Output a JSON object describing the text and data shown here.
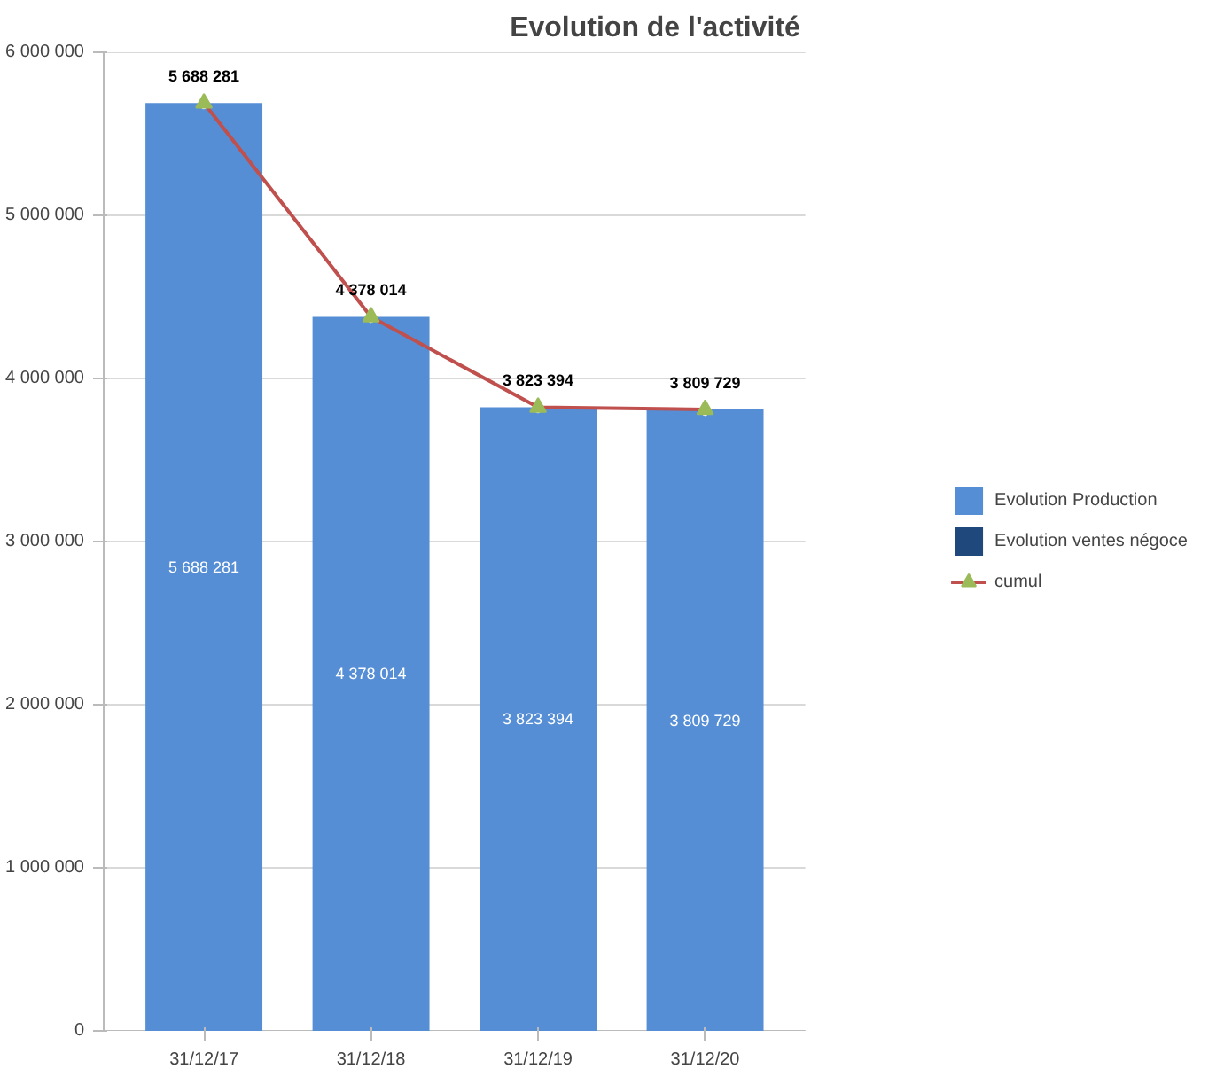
{
  "chart_data": {
    "type": "bar",
    "title": "Evolution de l'activité",
    "categories": [
      "31/12/17",
      "31/12/18",
      "31/12/19",
      "31/12/20"
    ],
    "stacked": true,
    "data_labels": true,
    "grid": "y",
    "legend": "right",
    "ylim": [
      0,
      6000000
    ],
    "yticks": [
      0,
      {
        "value": 1000000,
        "label": "1 000 000"
      },
      {
        "value": 2000000,
        "label": "2 000 000"
      },
      {
        "value": 3000000,
        "label": "3 000 000"
      },
      {
        "value": 4000000,
        "label": "4 000 000"
      },
      {
        "value": 5000000,
        "label": "5 000 000"
      },
      {
        "value": 6000000,
        "label": "6 000 000"
      }
    ],
    "series": [
      {
        "name": "Evolution Production",
        "color": "#558ed5",
        "values": [
          5688281,
          4378014,
          3823394,
          3809729
        ]
      },
      {
        "name": "Evolution ventes négoce",
        "color": "#1f497d",
        "values": [
          0,
          0,
          0,
          0
        ]
      },
      {
        "name": "cumul",
        "type": "line",
        "color": "#c0504d",
        "marker": "triangle",
        "values": [
          5688281,
          4378014,
          3823394,
          3809729
        ]
      }
    ]
  }
}
